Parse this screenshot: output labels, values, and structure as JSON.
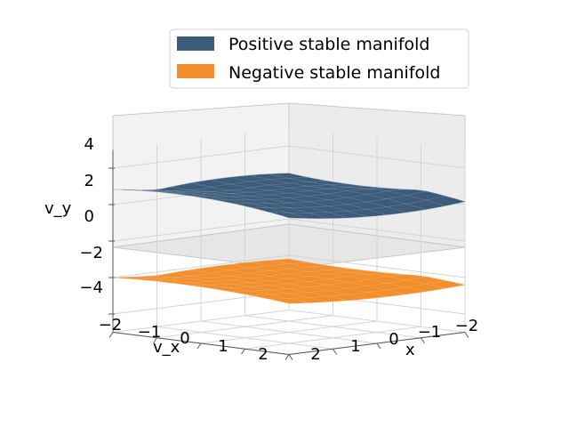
{
  "chart_data": {
    "type": "surface3d",
    "xlabel": "x",
    "ylabel": "v_x",
    "zlabel": "v_y",
    "x_ticks": [
      "−2",
      "−1",
      "0",
      "1",
      "2"
    ],
    "vx_ticks": [
      "−2",
      "−1",
      "0",
      "1",
      "2"
    ],
    "vy_ticks": [
      "4",
      "2",
      "0",
      "−2",
      "−4"
    ],
    "xlim": [
      -2,
      2
    ],
    "vxlim": [
      -2,
      2
    ],
    "vylim": [
      -5,
      5
    ],
    "grid": true,
    "legend_position": "top-right",
    "series": [
      {
        "name": "Positive stable manifold",
        "color": "#3b5b7a",
        "z_center": 2.5,
        "z_range": [
          1.0,
          3.7
        ]
      },
      {
        "name": "Negative stable manifold",
        "color": "#f28e2b",
        "z_center": -2.2,
        "z_range": [
          -3.0,
          -1.4
        ]
      }
    ]
  }
}
